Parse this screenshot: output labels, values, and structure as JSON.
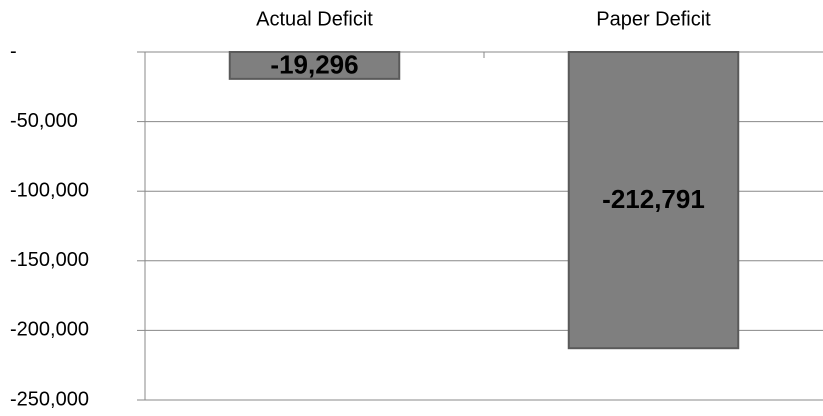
{
  "chart_data": {
    "type": "bar",
    "categories": [
      "Actual Deficit",
      "Paper Deficit"
    ],
    "values": [
      -19296,
      -212791
    ],
    "value_labels": [
      "-19,296",
      "-212,791"
    ],
    "color": "#7f7f7f",
    "ylim": [
      -250000,
      0
    ],
    "yticks": [
      {
        "value": 0,
        "label": "-"
      },
      {
        "value": -50000,
        "label": "-50,000"
      },
      {
        "value": -100000,
        "label": "-100,000"
      },
      {
        "value": -150000,
        "label": "-150,000"
      },
      {
        "value": -200000,
        "label": "-200,000"
      },
      {
        "value": -250000,
        "label": "-250,000"
      }
    ],
    "grid": true
  }
}
